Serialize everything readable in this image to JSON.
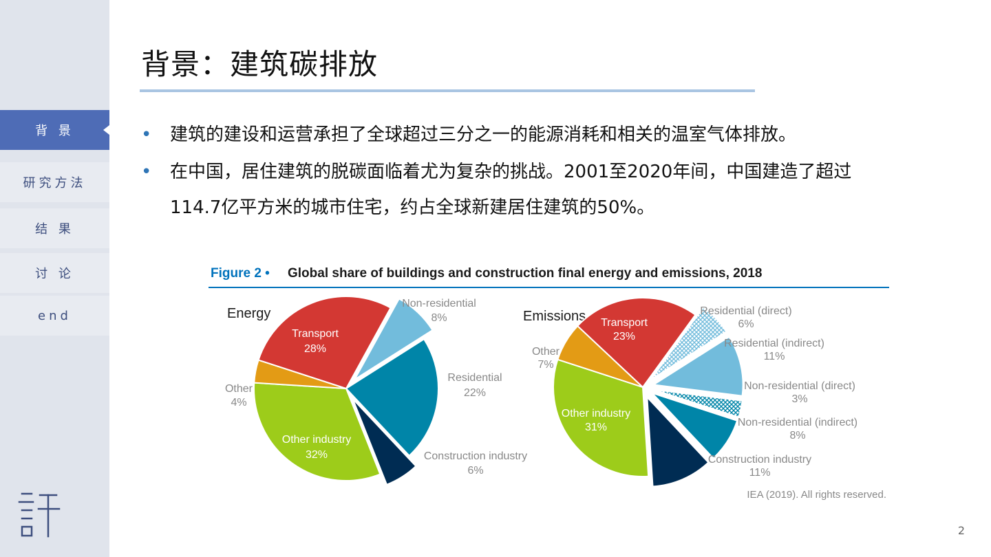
{
  "sidebar": {
    "items": [
      {
        "label": "背 景",
        "active": true
      },
      {
        "label": "研究方法",
        "active": false
      },
      {
        "label": "结 果",
        "active": false
      },
      {
        "label": "讨 论",
        "active": false
      },
      {
        "label": "end",
        "active": false
      }
    ],
    "logo_icon": "xu-character-logo"
  },
  "slide": {
    "title": "背景：建筑碳排放",
    "bullets": [
      "建筑的建设和运营承担了全球超过三分之一的能源消耗和相关的温室气体排放。",
      "在中国，居住建筑的脱碳面临着尤为复杂的挑战。2001至2020年间，中国建造了超过114.7亿平方米的城市住宅，约占全球新建居住建筑的50%。"
    ],
    "page_number": "2"
  },
  "chart_data": [
    {
      "type": "pie",
      "figure_label": "Figure 2 •",
      "title": "Global share of buildings and construction final energy and emissions, 2018",
      "subtitle": "Energy",
      "source": "IEA (2019). All rights reserved.",
      "slices": [
        {
          "label": "Non-residential",
          "value": 8,
          "value_label": "8%",
          "color": "#72bcdc",
          "exploded": true
        },
        {
          "label": "Residential",
          "value": 22,
          "value_label": "22%",
          "color": "#0085a8",
          "exploded": false
        },
        {
          "label": "Construction industry",
          "value": 6,
          "value_label": "6%",
          "color": "#002c53",
          "exploded": true
        },
        {
          "label": "Other industry",
          "value": 32,
          "value_label": "32%",
          "color": "#9dcc1a",
          "exploded": false
        },
        {
          "label": "Other",
          "value": 4,
          "value_label": "4%",
          "color": "#e39b15",
          "exploded": false
        },
        {
          "label": "Transport",
          "value": 28,
          "value_label": "28%",
          "color": "#d33833",
          "exploded": false
        }
      ]
    },
    {
      "type": "pie",
      "subtitle": "Emissions",
      "slices": [
        {
          "label": "Residential (direct)",
          "value": 6,
          "value_label": "6%",
          "color": "#72bcdc",
          "pattern": "hatched",
          "exploded": true
        },
        {
          "label": "Residential (indirect)",
          "value": 11,
          "value_label": "11%",
          "color": "#72bcdc",
          "exploded": true
        },
        {
          "label": "Non-residential (direct)",
          "value": 3,
          "value_label": "3%",
          "color": "#0085a8",
          "pattern": "hatched",
          "exploded": true
        },
        {
          "label": "Non-residential (indirect)",
          "value": 8,
          "value_label": "8%",
          "color": "#0085a8",
          "exploded": true
        },
        {
          "label": "Construction industry",
          "value": 11,
          "value_label": "11%",
          "color": "#002c53",
          "exploded": true
        },
        {
          "label": "Other industry",
          "value": 31,
          "value_label": "31%",
          "color": "#9dcc1a",
          "exploded": false
        },
        {
          "label": "Other",
          "value": 7,
          "value_label": "7%",
          "color": "#e39b15",
          "exploded": false
        },
        {
          "label": "Transport",
          "value": 23,
          "value_label": "23%",
          "color": "#d33833",
          "exploded": false
        }
      ]
    }
  ]
}
